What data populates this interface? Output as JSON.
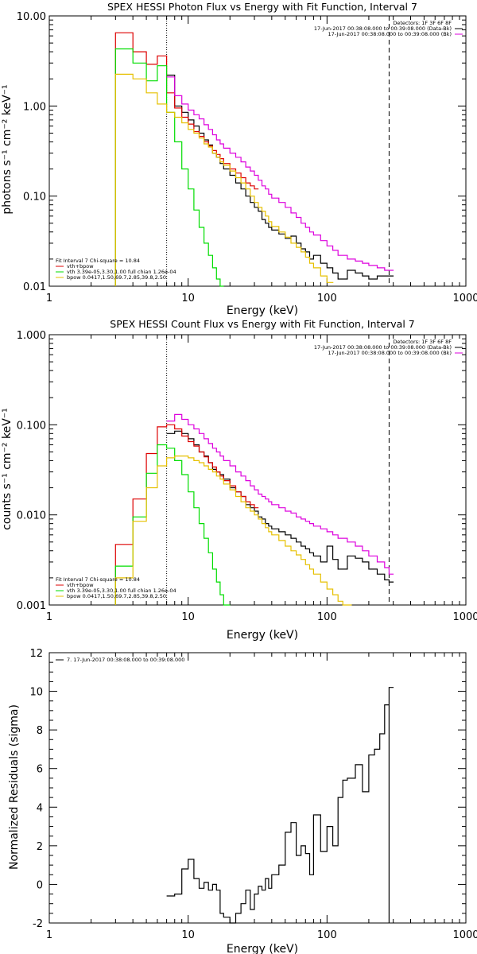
{
  "colors": {
    "data": "#000000",
    "total": "#dd0000",
    "thermal": "#00dd00",
    "powerlaw": "#e6c000",
    "background": "#dd00dd"
  },
  "chart_data": [
    {
      "type": "line",
      "drawstyle": "step",
      "title": "SPEX HESSI Photon Flux vs Energy with Fit Function, Interval 7",
      "xlabel": "Energy (keV)",
      "ylabel": "photons s⁻¹ cm⁻² keV⁻¹",
      "xscale": "log",
      "yscale": "log",
      "xlim": [
        1,
        1000
      ],
      "ylim": [
        0.01,
        10
      ],
      "xticks": [
        "1",
        "10",
        "100",
        "1000"
      ],
      "yticks": [
        "0.01",
        "0.10",
        "1.00",
        "10.00"
      ],
      "vlines": [
        {
          "x": 7,
          "style": "dotted"
        },
        {
          "x": 280,
          "style": "dashed"
        }
      ],
      "legend_top": [
        "Detectors: 1F 3F 6F 8F",
        "17-Jun-2017 00:38:08.000 to 00:39:08.000 (Data-Bk)",
        "17-Jun-2017 00:38:08.000 to 00:39:08.000 (Bk)"
      ],
      "legend_bottom": [
        "Fit Interval 7   Chi-square = 10.84",
        "vth+bpow",
        "vth 3.39e-05,3.30,1.00  full chian 1.26e-04",
        "bpow 0.0417,1.50,69.7,2.85,39.8,2.50"
      ],
      "series": [
        {
          "name": "17-Jun-2017 00:38:08.000 to 00:39:08.000 (Data-Bk)",
          "color": "#000000",
          "x": [
            7,
            8,
            9,
            10,
            11,
            12,
            13,
            14,
            15,
            16,
            17,
            18,
            20,
            22,
            24,
            26,
            28,
            30,
            32,
            34,
            36,
            38,
            40,
            45,
            50,
            55,
            60,
            65,
            70,
            75,
            80,
            90,
            100,
            110,
            120,
            140,
            160,
            180,
            200,
            230,
            260,
            280
          ],
          "y": [
            2.2,
            1.0,
            0.85,
            0.7,
            0.6,
            0.5,
            0.42,
            0.37,
            0.3,
            0.27,
            0.23,
            0.2,
            0.17,
            0.14,
            0.12,
            0.1,
            0.085,
            0.075,
            0.068,
            0.055,
            0.05,
            0.045,
            0.042,
            0.038,
            0.034,
            0.036,
            0.03,
            0.026,
            0.024,
            0.02,
            0.022,
            0.018,
            0.016,
            0.014,
            0.012,
            0.015,
            0.014,
            0.013,
            0.012,
            0.013,
            0.013,
            0.013
          ]
        },
        {
          "name": "vth+bpow",
          "color": "#dd0000",
          "x": [
            3,
            4,
            5,
            6,
            7,
            8,
            9,
            10,
            11,
            12,
            13,
            14,
            15,
            16,
            17,
            18,
            20,
            22,
            24,
            26,
            28,
            30
          ],
          "y": [
            6.5,
            4.0,
            2.9,
            3.6,
            1.4,
            0.95,
            0.75,
            0.63,
            0.52,
            0.46,
            0.4,
            0.36,
            0.32,
            0.29,
            0.26,
            0.23,
            0.2,
            0.18,
            0.16,
            0.14,
            0.13,
            0.12
          ]
        },
        {
          "name": "vth 3.39e-05,3.30,1.00  full chian 1.26e-04",
          "color": "#00dd00",
          "x": [
            3,
            4,
            5,
            6,
            7,
            8,
            9,
            10,
            11,
            12,
            13,
            14,
            15,
            16,
            17
          ],
          "y": [
            4.3,
            3.0,
            1.9,
            2.8,
            0.85,
            0.4,
            0.2,
            0.12,
            0.07,
            0.045,
            0.03,
            0.022,
            0.016,
            0.012,
            0.01
          ]
        },
        {
          "name": "bpow 0.0417,1.50,69.7,2.85,39.8,2.50",
          "color": "#e6c000",
          "x": [
            3,
            4,
            5,
            6,
            7,
            8,
            9,
            10,
            11,
            12,
            13,
            14,
            15,
            16,
            17,
            18,
            20,
            22,
            24,
            26,
            28,
            30,
            32,
            34,
            36,
            38,
            40,
            45,
            50,
            55,
            60,
            65,
            70,
            75,
            80,
            90,
            100
          ],
          "y": [
            2.25,
            2.0,
            1.4,
            1.05,
            0.85,
            0.75,
            0.65,
            0.55,
            0.5,
            0.44,
            0.38,
            0.35,
            0.3,
            0.27,
            0.24,
            0.22,
            0.19,
            0.16,
            0.14,
            0.12,
            0.1,
            0.085,
            0.075,
            0.068,
            0.06,
            0.052,
            0.046,
            0.04,
            0.035,
            0.03,
            0.027,
            0.024,
            0.021,
            0.018,
            0.016,
            0.013,
            0.011
          ]
        },
        {
          "name": "17-Jun-2017 00:38:08.000 to 00:39:08.000 (Bk)",
          "color": "#dd00dd",
          "x": [
            7,
            8,
            9,
            10,
            11,
            12,
            13,
            14,
            15,
            16,
            17,
            18,
            20,
            22,
            24,
            26,
            28,
            30,
            32,
            34,
            36,
            38,
            40,
            45,
            50,
            55,
            60,
            65,
            70,
            75,
            80,
            90,
            100,
            110,
            120,
            140,
            160,
            180,
            200,
            230,
            260,
            280
          ],
          "y": [
            2.1,
            1.3,
            1.05,
            0.9,
            0.8,
            0.72,
            0.62,
            0.55,
            0.48,
            0.42,
            0.38,
            0.34,
            0.3,
            0.27,
            0.24,
            0.21,
            0.19,
            0.17,
            0.15,
            0.13,
            0.12,
            0.105,
            0.095,
            0.085,
            0.075,
            0.065,
            0.058,
            0.05,
            0.045,
            0.04,
            0.037,
            0.032,
            0.028,
            0.025,
            0.022,
            0.02,
            0.019,
            0.018,
            0.017,
            0.016,
            0.015,
            0.015
          ]
        }
      ]
    },
    {
      "type": "line",
      "drawstyle": "step",
      "title": "SPEX HESSI Count Flux vs Energy with Fit Function, Interval 7",
      "xlabel": "Energy (keV)",
      "ylabel": "counts s⁻¹ cm⁻² keV⁻¹",
      "xscale": "log",
      "yscale": "log",
      "xlim": [
        1,
        1000
      ],
      "ylim": [
        0.001,
        1
      ],
      "xticks": [
        "1",
        "10",
        "100",
        "1000"
      ],
      "yticks": [
        "0.001",
        "0.010",
        "0.100",
        "1.000"
      ],
      "vlines": [
        {
          "x": 7,
          "style": "dotted"
        },
        {
          "x": 280,
          "style": "dashed"
        }
      ],
      "legend_top": [
        "Detectors: 1F 3F 6F 8F",
        "17-Jun-2017 00:38:08.000 to 00:39:08.000 (Data-Bk)",
        "17-Jun-2017 00:38:08.000 to 00:39:08.000 (Bk)"
      ],
      "legend_bottom": [
        "Fit Interval 7   Chi-square = 10.84",
        "vth+bpow",
        "vth 3.39e-05,3.30,1.00  full chian 1.26e-04",
        "bpow 0.0417,1.50,69.7,2.85,39.8,2.50"
      ],
      "series": [
        {
          "name": "17-Jun-2017 00:38:08.000 to 00:39:08.000 (Data-Bk)",
          "color": "#000000",
          "x": [
            7,
            8,
            9,
            10,
            11,
            12,
            13,
            14,
            15,
            16,
            17,
            18,
            20,
            22,
            24,
            26,
            28,
            30,
            32,
            34,
            36,
            38,
            40,
            45,
            50,
            55,
            60,
            65,
            70,
            75,
            80,
            90,
            100,
            110,
            120,
            140,
            160,
            180,
            200,
            230,
            260,
            280
          ],
          "y": [
            0.08,
            0.085,
            0.08,
            0.07,
            0.06,
            0.05,
            0.045,
            0.038,
            0.032,
            0.03,
            0.028,
            0.025,
            0.02,
            0.018,
            0.016,
            0.013,
            0.012,
            0.011,
            0.0095,
            0.009,
            0.008,
            0.0075,
            0.007,
            0.0065,
            0.006,
            0.0055,
            0.005,
            0.0045,
            0.0042,
            0.0038,
            0.0035,
            0.003,
            0.0045,
            0.0032,
            0.0025,
            0.0035,
            0.0033,
            0.003,
            0.0025,
            0.0022,
            0.0019,
            0.0018
          ]
        },
        {
          "name": "vth+bpow",
          "color": "#dd0000",
          "x": [
            3,
            4,
            5,
            6,
            7,
            8,
            9,
            10,
            11,
            12,
            13,
            14,
            15,
            16,
            17,
            18,
            20,
            22,
            24,
            26,
            28,
            30
          ],
          "y": [
            0.0047,
            0.015,
            0.048,
            0.095,
            0.1,
            0.09,
            0.075,
            0.065,
            0.058,
            0.05,
            0.044,
            0.038,
            0.034,
            0.03,
            0.027,
            0.024,
            0.021,
            0.018,
            0.016,
            0.014,
            0.013,
            0.012
          ]
        },
        {
          "name": "vth 3.39e-05,3.30,1.00  full chian 1.26e-04",
          "color": "#00dd00",
          "x": [
            3,
            4,
            5,
            6,
            7,
            8,
            9,
            10,
            11,
            12,
            13,
            14,
            15,
            16,
            17,
            18,
            19
          ],
          "y": [
            0.0027,
            0.0095,
            0.029,
            0.06,
            0.055,
            0.04,
            0.028,
            0.018,
            0.012,
            0.008,
            0.0055,
            0.0038,
            0.0025,
            0.0018,
            0.0013,
            0.001,
            0.001
          ]
        },
        {
          "name": "bpow 0.0417,1.50,69.7,2.85,39.8,2.50",
          "color": "#e6c000",
          "x": [
            3,
            4,
            5,
            6,
            7,
            8,
            9,
            10,
            11,
            12,
            13,
            14,
            15,
            16,
            17,
            18,
            20,
            22,
            24,
            26,
            28,
            30,
            32,
            34,
            36,
            38,
            40,
            45,
            50,
            55,
            60,
            65,
            70,
            75,
            80,
            90,
            100,
            110,
            120,
            130,
            140
          ],
          "y": [
            0.002,
            0.0085,
            0.02,
            0.035,
            0.043,
            0.045,
            0.045,
            0.043,
            0.04,
            0.038,
            0.035,
            0.032,
            0.03,
            0.027,
            0.025,
            0.022,
            0.019,
            0.016,
            0.014,
            0.012,
            0.011,
            0.01,
            0.009,
            0.008,
            0.0072,
            0.0065,
            0.006,
            0.0052,
            0.0045,
            0.004,
            0.0036,
            0.0032,
            0.0028,
            0.0025,
            0.0022,
            0.0018,
            0.0015,
            0.0013,
            0.0011,
            0.001,
            0.001
          ]
        },
        {
          "name": "17-Jun-2017 00:38:08.000 to 00:39:08.000 (Bk)",
          "color": "#dd00dd",
          "x": [
            7,
            8,
            9,
            10,
            11,
            12,
            13,
            14,
            15,
            16,
            17,
            18,
            20,
            22,
            24,
            26,
            28,
            30,
            32,
            34,
            36,
            38,
            40,
            45,
            50,
            55,
            60,
            65,
            70,
            75,
            80,
            90,
            100,
            110,
            120,
            140,
            160,
            180,
            200,
            230,
            260,
            280
          ],
          "y": [
            0.11,
            0.13,
            0.115,
            0.1,
            0.09,
            0.08,
            0.07,
            0.062,
            0.055,
            0.05,
            0.045,
            0.04,
            0.035,
            0.03,
            0.027,
            0.024,
            0.021,
            0.019,
            0.017,
            0.016,
            0.015,
            0.014,
            0.013,
            0.012,
            0.011,
            0.0105,
            0.0095,
            0.009,
            0.0085,
            0.008,
            0.0075,
            0.007,
            0.0065,
            0.006,
            0.0055,
            0.005,
            0.0045,
            0.004,
            0.0035,
            0.003,
            0.0026,
            0.0022
          ]
        }
      ]
    },
    {
      "type": "line",
      "drawstyle": "step",
      "title": "",
      "xlabel": "Energy (keV)",
      "ylabel": "Normalized Residuals (sigma)",
      "xscale": "log",
      "yscale": "linear",
      "xlim": [
        1,
        1000
      ],
      "ylim": [
        -2,
        12
      ],
      "xticks": [
        "1",
        "10",
        "100",
        "1000"
      ],
      "yticks": [
        "-2",
        "0",
        "2",
        "4",
        "6",
        "8",
        "10",
        "12"
      ],
      "legend_top": [
        "7. 17-Jun-2017 00:38:08.000 to 00:39:08.000"
      ],
      "series": [
        {
          "name": "7. 17-Jun-2017 00:38:08.000 to 00:39:08.000",
          "color": "#000000",
          "x": [
            7,
            8,
            9,
            10,
            11,
            12,
            13,
            14,
            15,
            16,
            17,
            18,
            20,
            22,
            24,
            26,
            28,
            30,
            32,
            34,
            36,
            38,
            40,
            45,
            50,
            55,
            60,
            65,
            70,
            75,
            80,
            90,
            100,
            110,
            120,
            130,
            140,
            160,
            180,
            200,
            220,
            240,
            260,
            280
          ],
          "y": [
            -0.6,
            -0.5,
            0.8,
            1.3,
            0.3,
            -0.2,
            0.1,
            -0.3,
            0.0,
            -0.3,
            -1.5,
            -1.7,
            -2.0,
            -1.5,
            -1.0,
            -0.3,
            -1.3,
            -0.5,
            -0.1,
            -0.3,
            0.3,
            -0.2,
            0.5,
            1.0,
            2.7,
            3.2,
            1.5,
            2.0,
            1.6,
            0.5,
            3.6,
            1.7,
            3.0,
            2.0,
            4.5,
            5.4,
            5.5,
            6.2,
            4.8,
            6.7,
            7.0,
            7.8,
            9.3,
            10.2
          ]
        }
      ]
    }
  ]
}
